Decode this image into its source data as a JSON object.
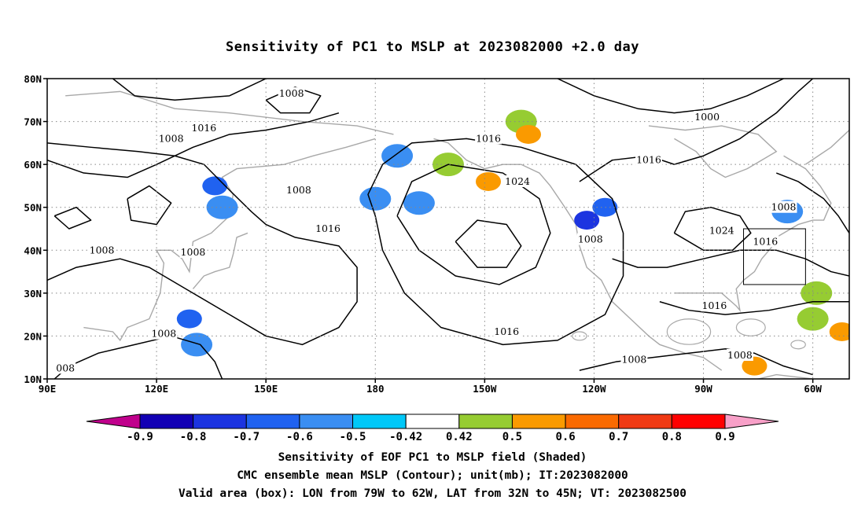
{
  "title": "Sensitivity of PC1 to MSLP at 2023082000 +2.0 day",
  "map": {
    "lat_labels": [
      "80N",
      "70N",
      "60N",
      "50N",
      "40N",
      "30N",
      "20N",
      "10N"
    ],
    "lon_labels": [
      "90E",
      "120E",
      "150E",
      "180",
      "150W",
      "120W",
      "90W",
      "60W"
    ],
    "lon_range_deg_east": [
      90,
      310
    ],
    "lat_range": [
      10,
      80
    ],
    "grid": "dotted",
    "contour_labels": [
      {
        "text": "1008",
        "lon": 157,
        "lat": 76.5
      },
      {
        "text": "1000",
        "lon": 271,
        "lat": 71.0
      },
      {
        "text": "1016",
        "lon": 133,
        "lat": 68.5
      },
      {
        "text": "1008",
        "lon": 124,
        "lat": 66.0
      },
      {
        "text": "1016",
        "lon": 211,
        "lat": 66.0
      },
      {
        "text": "1016",
        "lon": 255,
        "lat": 61.0
      },
      {
        "text": "1024",
        "lon": 219,
        "lat": 56.0
      },
      {
        "text": "1008",
        "lon": 159,
        "lat": 54.0
      },
      {
        "text": "1008",
        "lon": 292,
        "lat": 50.0
      },
      {
        "text": "1016",
        "lon": 167,
        "lat": 45.0
      },
      {
        "text": "1024",
        "lon": 275,
        "lat": 44.5
      },
      {
        "text": "1016",
        "lon": 287,
        "lat": 42.0
      },
      {
        "text": "1008",
        "lon": 239,
        "lat": 42.5
      },
      {
        "text": "1008",
        "lon": 105,
        "lat": 40.0
      },
      {
        "text": "1008",
        "lon": 130,
        "lat": 39.5
      },
      {
        "text": "1016",
        "lon": 273,
        "lat": 27.0
      },
      {
        "text": "1016",
        "lon": 216,
        "lat": 21.0
      },
      {
        "text": "1008",
        "lon": 122,
        "lat": 20.5
      },
      {
        "text": "1008",
        "lon": 251,
        "lat": 14.5
      },
      {
        "text": "1008",
        "lon": 280,
        "lat": 15.5
      },
      {
        "text": "008",
        "lon": 95,
        "lat": 12.5
      }
    ],
    "valid_box": {
      "lon_west": 79,
      "lon_east": 62,
      "lat_south": 32,
      "lat_north": 45
    },
    "shaded_regions": [
      {
        "lon": 138,
        "lat": 50,
        "value": -0.5
      },
      {
        "lon": 136,
        "lat": 55,
        "value": -0.6
      },
      {
        "lon": 129,
        "lat": 24,
        "value": -0.6
      },
      {
        "lon": 131,
        "lat": 18,
        "value": -0.5
      },
      {
        "lon": 180,
        "lat": 52,
        "value": -0.5
      },
      {
        "lon": 192,
        "lat": 51,
        "value": -0.5
      },
      {
        "lon": 243,
        "lat": 50,
        "value": -0.6
      },
      {
        "lon": 238,
        "lat": 47,
        "value": -0.7
      },
      {
        "lon": 293,
        "lat": 49,
        "value": -0.5
      },
      {
        "lon": 186,
        "lat": 62,
        "value": -0.5
      },
      {
        "lon": 220,
        "lat": 70,
        "value": 0.5
      },
      {
        "lon": 222,
        "lat": 67,
        "value": 0.6
      },
      {
        "lon": 200,
        "lat": 60,
        "value": 0.5
      },
      {
        "lon": 211,
        "lat": 56,
        "value": 0.6
      },
      {
        "lon": 301,
        "lat": 30,
        "value": 0.5
      },
      {
        "lon": 300,
        "lat": 24,
        "value": 0.5
      },
      {
        "lon": 284,
        "lat": 13,
        "value": 0.6
      },
      {
        "lon": 308,
        "lat": 21,
        "value": 0.6
      }
    ]
  },
  "colorbar": {
    "labels": [
      "-0.9",
      "-0.8",
      "-0.7",
      "-0.6",
      "-0.5",
      "-0.42",
      "0.42",
      "0.5",
      "0.6",
      "0.7",
      "0.8",
      "0.9"
    ],
    "colors": [
      "#c0008c",
      "#1200b4",
      "#1c34e0",
      "#2062f0",
      "#3a8ef2",
      "#00c8f8",
      "#ffffff",
      "#96cc32",
      "#fa9a00",
      "#fa6a00",
      "#f03a14",
      "#ff0000",
      "#f8a0c8"
    ]
  },
  "captions": [
    "Sensitivity of EOF PC1 to MSLP field (Shaded)",
    "CMC ensemble mean MSLP (Contour); unit(mb); IT:2023082000",
    "Valid area (box): LON from 79W to 62W, LAT from 32N to 45N; VT: 2023082500"
  ]
}
